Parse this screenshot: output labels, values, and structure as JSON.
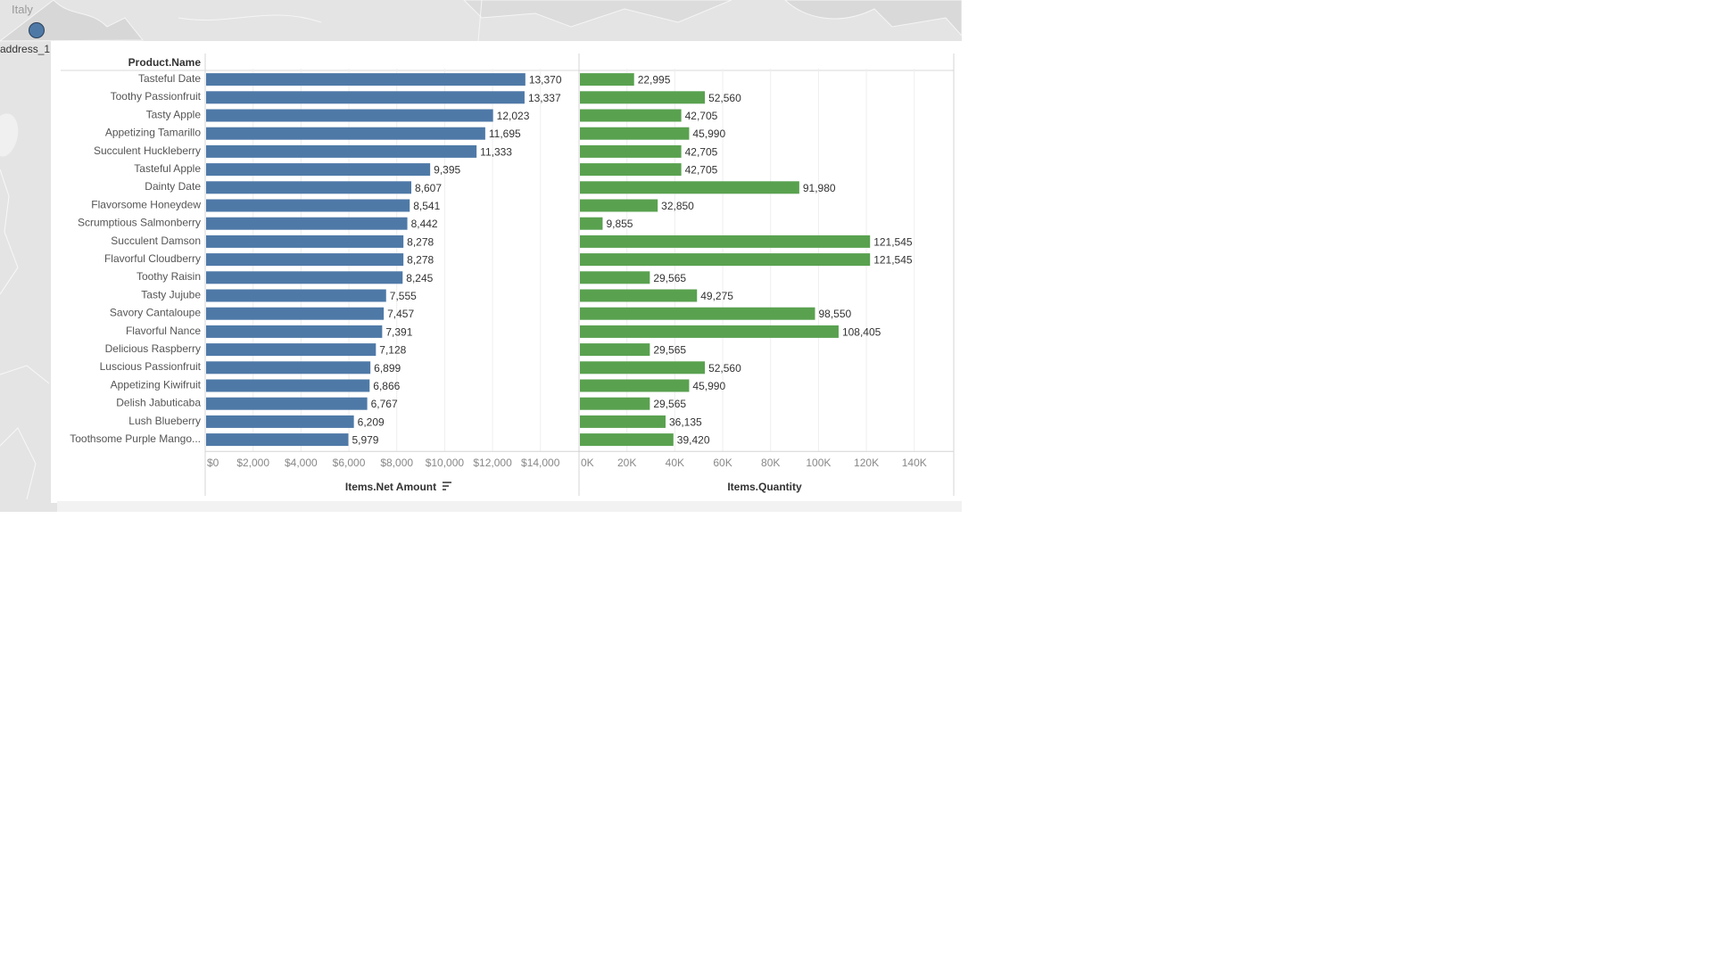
{
  "map": {
    "place_label": "Italy",
    "marker_label": "address_1",
    "marker_color": "#4e79a7"
  },
  "chart_data": {
    "type": "bar",
    "orientation": "horizontal",
    "row_header": "Product.Name",
    "categories": [
      "Tasteful Date",
      "Toothy Passionfruit",
      "Tasty Apple",
      "Appetizing Tamarillo",
      "Succulent Huckleberry",
      "Tasteful Apple",
      "Dainty Date",
      "Flavorsome Honeydew",
      "Scrumptious Salmonberry",
      "Succulent Damson",
      "Flavorful Cloudberry",
      "Toothy Raisin",
      "Tasty Jujube",
      "Savory Cantaloupe",
      "Flavorful Nance",
      "Delicious Raspberry",
      "Luscious Passionfruit",
      "Appetizing Kiwifruit",
      "Delish Jabuticaba",
      "Lush Blueberry",
      "Toothsome Purple Mango..."
    ],
    "panels": [
      {
        "measure": "Items.Net Amount",
        "color": "#4e79a7",
        "xlim": [
          0,
          15500
        ],
        "ticks": [
          0,
          2000,
          4000,
          6000,
          8000,
          10000,
          12000,
          14000
        ],
        "tick_labels": [
          "$0",
          "$2,000",
          "$4,000",
          "$6,000",
          "$8,000",
          "$10,000",
          "$12,000",
          "$14,000"
        ],
        "sort_indicator": true,
        "values": [
          13370,
          13337,
          12023,
          11695,
          11333,
          9395,
          8607,
          8541,
          8442,
          8278,
          8278,
          8245,
          7555,
          7457,
          7391,
          7128,
          6899,
          6866,
          6767,
          6209,
          5979
        ],
        "value_labels": [
          "13,370",
          "13,337",
          "12,023",
          "11,695",
          "11,333",
          "9,395",
          "8,607",
          "8,541",
          "8,442",
          "8,278",
          "8,278",
          "8,245",
          "7,555",
          "7,457",
          "7,391",
          "7,128",
          "6,899",
          "6,866",
          "6,767",
          "6,209",
          "5,979"
        ]
      },
      {
        "measure": "Items.Quantity",
        "color": "#59a14f",
        "xlim": [
          0,
          155000
        ],
        "ticks": [
          0,
          20000,
          40000,
          60000,
          80000,
          100000,
          120000,
          140000
        ],
        "tick_labels": [
          "0K",
          "20K",
          "40K",
          "60K",
          "80K",
          "100K",
          "120K",
          "140K"
        ],
        "sort_indicator": false,
        "values": [
          22995,
          52560,
          42705,
          45990,
          42705,
          42705,
          91980,
          32850,
          9855,
          121545,
          121545,
          29565,
          49275,
          98550,
          108405,
          29565,
          52560,
          45990,
          29565,
          36135,
          39420
        ],
        "value_labels": [
          "22,995",
          "52,560",
          "42,705",
          "45,990",
          "42,705",
          "42,705",
          "91,980",
          "32,850",
          "9,855",
          "121,545",
          "121,545",
          "29,565",
          "49,275",
          "98,550",
          "108,405",
          "29,565",
          "52,560",
          "45,990",
          "29,565",
          "36,135",
          "39,420"
        ]
      }
    ],
    "grid": true
  }
}
